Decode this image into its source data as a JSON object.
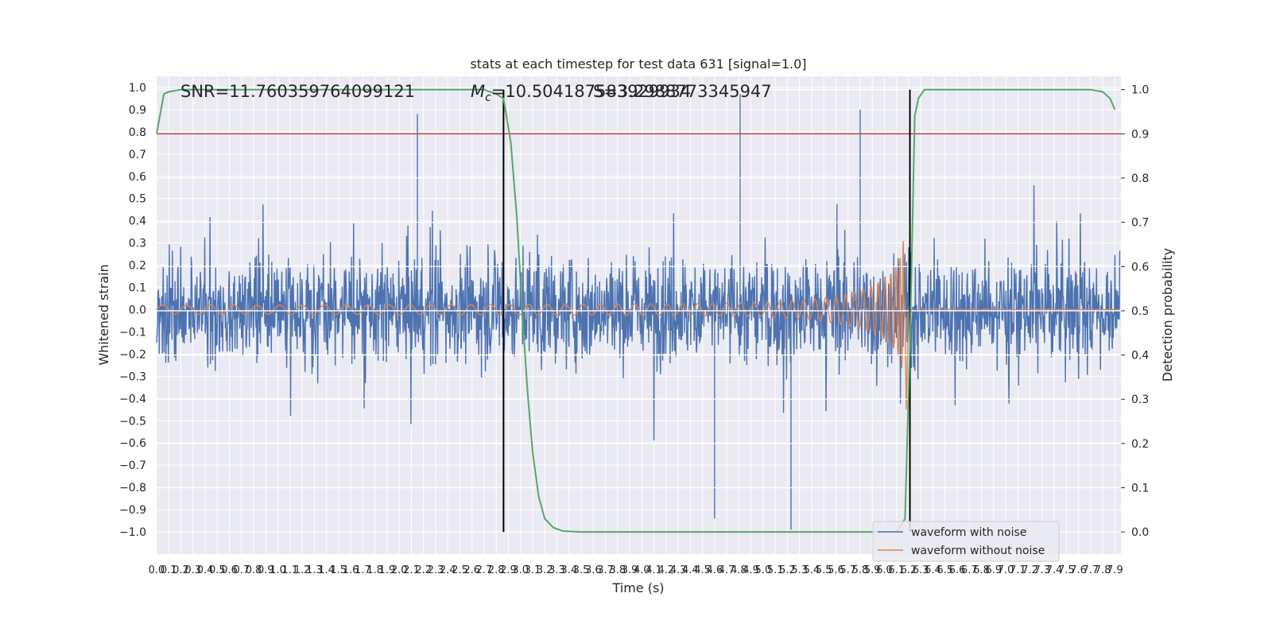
{
  "chart_data": {
    "type": "line",
    "title": "stats at each timestep for test data 631 [signal=1.0]",
    "xlabel": "Time (s)",
    "ylabel_left": "Whitened strain",
    "ylabel_right": "Detection probability",
    "xlim": [
      0.0,
      7.95
    ],
    "ylim_left": [
      -1.1,
      1.05
    ],
    "ylim_right": [
      -0.05,
      1.03
    ],
    "x_ticks": [
      "0.0",
      "0.1",
      "0.2",
      "0.3",
      "0.4",
      "0.5",
      "0.6",
      "0.7",
      "0.8",
      "0.9",
      "1.0",
      "1.1",
      "1.2",
      "1.3",
      "1.4",
      "1.5",
      "1.6",
      "1.7",
      "1.8",
      "1.9",
      "2.0",
      "2.1",
      "2.2",
      "2.3",
      "2.4",
      "2.5",
      "2.6",
      "2.7",
      "2.8",
      "2.9",
      "3.0",
      "3.1",
      "3.2",
      "3.3",
      "3.4",
      "3.5",
      "3.6",
      "3.7",
      "3.8",
      "3.9",
      "4.0",
      "4.1",
      "4.2",
      "4.3",
      "4.4",
      "4.5",
      "4.6",
      "4.7",
      "4.8",
      "4.9",
      "5.0",
      "5.1",
      "5.2",
      "5.3",
      "5.4",
      "5.5",
      "5.6",
      "5.7",
      "5.8",
      "5.9",
      "6.0",
      "6.1",
      "6.2",
      "6.3",
      "6.4",
      "6.5",
      "6.6",
      "6.7",
      "6.8",
      "6.9",
      "7.0",
      "7.1",
      "7.2",
      "7.3",
      "7.4",
      "7.5",
      "7.6",
      "7.7",
      "7.8",
      "7.9"
    ],
    "y_ticks_left": [
      "1.0",
      "0.9",
      "0.8",
      "0.7",
      "0.6",
      "0.5",
      "0.4",
      "0.3",
      "0.2",
      "0.1",
      "0.0",
      "−0.1",
      "−0.2",
      "−0.3",
      "−0.4",
      "−0.5",
      "−0.6",
      "−0.7",
      "−0.8",
      "−0.9",
      "−1.0"
    ],
    "y_ticks_right": [
      "1.0",
      "0.9",
      "0.8",
      "0.7",
      "0.6",
      "0.5",
      "0.4",
      "0.3",
      "0.2",
      "0.1",
      "0.0"
    ],
    "annotations": {
      "snr": "SNR=11.760359764099121",
      "mc": "=10.504187583929934",
      "mc_symbol_main": "M",
      "mc_symbol_sub": "c",
      "overlap": "S=3.2988773345947"
    },
    "series": [
      {
        "name": "waveform with noise",
        "axis": "left",
        "color": "#4c72b0",
        "description_points": "dense random noise, typical range -0.45..0.45, peaks ~0.97 near t=4.8 and ~-0.99 near t=5.2"
      },
      {
        "name": "waveform without noise",
        "axis": "left",
        "color": "#dd8452",
        "chirp": {
          "start_time": 0.0,
          "merger_time": 6.17,
          "start_amplitude": 0.02,
          "peak_amplitude": 0.35,
          "min_amplitude": -0.45
        }
      },
      {
        "name": "",
        "axis": "right",
        "color": "#55a868",
        "x": [
          0.0,
          0.06,
          0.1,
          0.2,
          0.5,
          1.0,
          1.5,
          2.0,
          2.5,
          2.7,
          2.8,
          2.86,
          2.92,
          2.97,
          3.02,
          3.06,
          3.1,
          3.15,
          3.2,
          3.27,
          3.35,
          3.5,
          4.0,
          4.5,
          5.0,
          5.5,
          5.8,
          6.0,
          6.1,
          6.17,
          6.21,
          6.25,
          6.28,
          6.33,
          6.4,
          7.0,
          7.5,
          7.7,
          7.8,
          7.86,
          7.9
        ],
        "y": [
          0.9,
          0.99,
          0.995,
          1.0,
          1.0,
          1.0,
          1.0,
          1.0,
          1.0,
          1.0,
          0.99,
          0.98,
          0.88,
          0.71,
          0.47,
          0.31,
          0.18,
          0.08,
          0.03,
          0.01,
          0.002,
          0.0,
          0.0,
          0.0,
          0.0,
          0.0,
          0.0,
          0.0,
          0.0,
          0.03,
          0.42,
          0.94,
          0.98,
          1.0,
          1.0,
          1.0,
          1.0,
          1.0,
          0.995,
          0.98,
          0.955
        ]
      }
    ],
    "threshold": {
      "axis": "right",
      "value": 0.9,
      "color": "#c44e52"
    },
    "vertical_lines": {
      "x": [
        2.86,
        6.21
      ],
      "color": "#000000",
      "axis": "right",
      "ymin": 0.0,
      "ymax": 1.0
    },
    "legend": {
      "placement": "lower-right",
      "entries": [
        "waveform with noise",
        "waveform without noise"
      ]
    },
    "grid": true,
    "style": {
      "axes_bg": "#eaeaf2",
      "grid_color": "#ffffff"
    }
  }
}
